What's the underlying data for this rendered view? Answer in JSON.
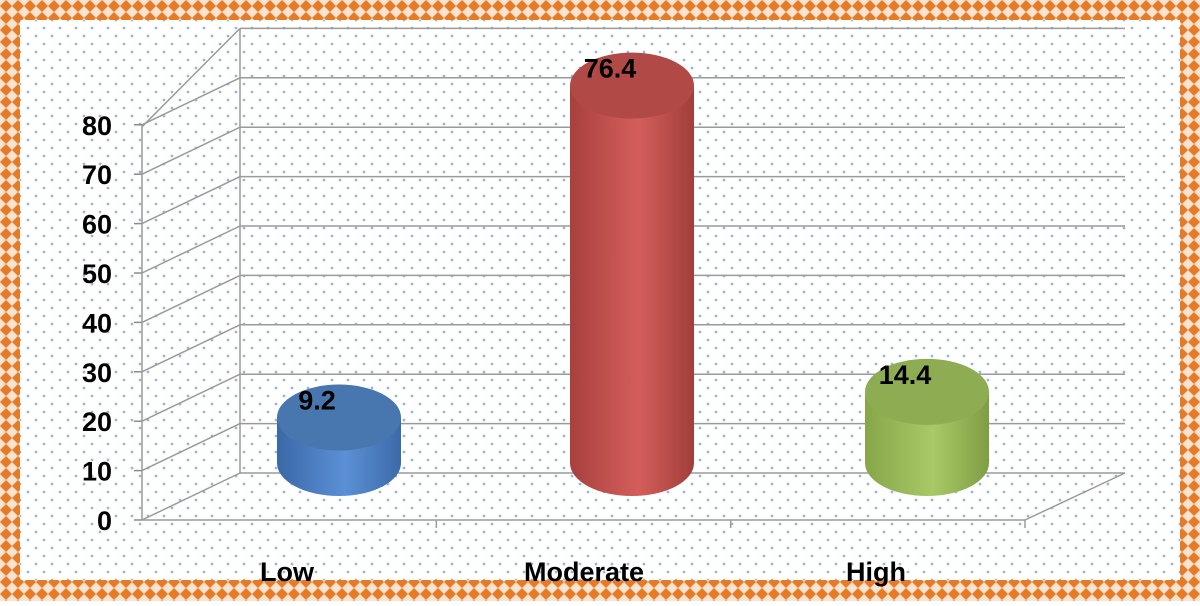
{
  "chart_data": {
    "type": "bar",
    "categories": [
      "Low",
      "Moderate",
      "High"
    ],
    "values": [
      9.2,
      76.4,
      14.4
    ],
    "data_labels": [
      "9.2",
      "76.4",
      "14.4"
    ],
    "ylim": [
      0,
      80
    ],
    "yticks": [
      0,
      10,
      20,
      30,
      40,
      50,
      60,
      70,
      80
    ],
    "grid": true,
    "legend": "none",
    "bar_colors": [
      "#4f81bd",
      "#c0504d",
      "#9bbb59"
    ],
    "frame_color": "#e67a26"
  }
}
